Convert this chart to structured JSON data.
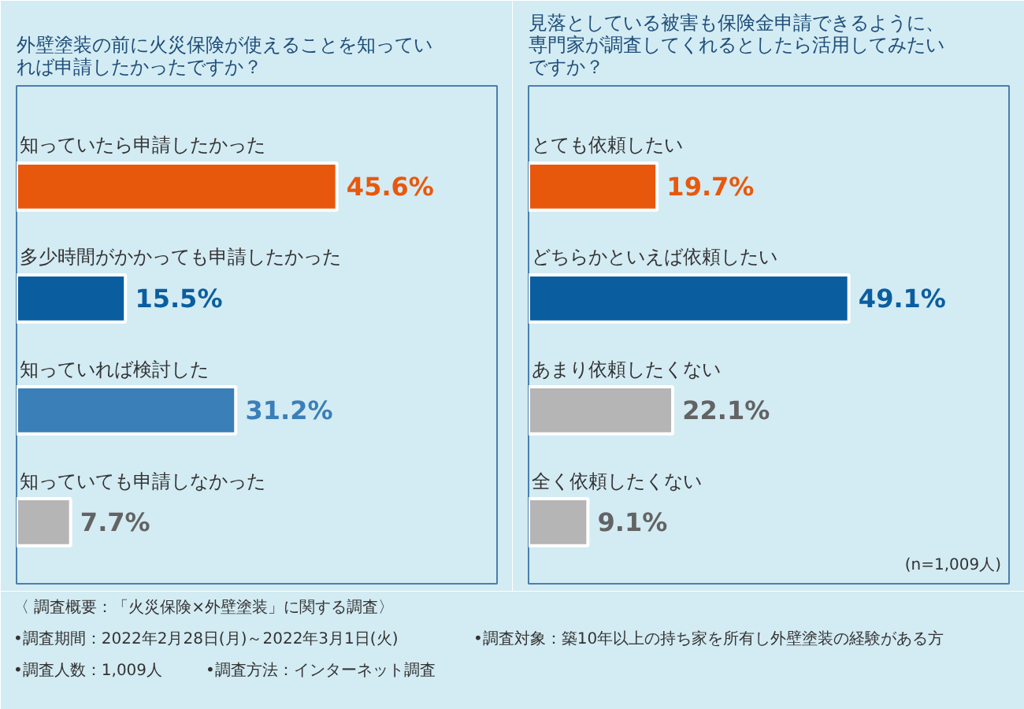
{
  "chart_data": [
    {
      "type": "bar",
      "orientation": "horizontal",
      "title": "外壁塗装の前に火災保険が使えることを知っていれば申請したかったですか？",
      "categories": [
        "知っていたら申請したかった",
        "多少時間がかかっても申請したかった",
        "知っていれば検討した",
        "知っていても申請しなかった"
      ],
      "values": [
        45.6,
        15.5,
        31.2,
        7.7
      ],
      "colors": [
        "#e8580c",
        "#0a5ea0",
        "#3a7fb8",
        "#b5b5b5"
      ],
      "value_labels": [
        "45.6%",
        "15.5%",
        "31.2%",
        "7.7%"
      ]
    },
    {
      "type": "bar",
      "orientation": "horizontal",
      "title": "見落としている被害も保険金申請できるように、専門家が調査してくれるとしたら活用してみたいですか？",
      "categories": [
        "とても依頼したい",
        "どちらかといえば依頼したい",
        "あまり依頼したくない",
        "全く依頼したくない"
      ],
      "values": [
        19.7,
        49.1,
        22.1,
        9.1
      ],
      "colors": [
        "#e8580c",
        "#0a5ea0",
        "#b5b5b5",
        "#b5b5b5"
      ],
      "value_labels": [
        "19.7%",
        "49.1%",
        "22.1%",
        "9.1%"
      ],
      "annotations": [
        "(n=1,009人)"
      ]
    },
    {
      "type": "other",
      "annotations": [
        "〈 調査概要：「火災保険×外壁塗装」に関する調査〉",
        "•調査期間：2022年2月28日(月)～2022年3月1日(火)",
        "•調査対象：築10年以上の持ち家を所有し外壁塗装の経験がある方",
        "•調査人数：1,009人",
        "•調査方法：インターネット調査"
      ]
    }
  ]
}
